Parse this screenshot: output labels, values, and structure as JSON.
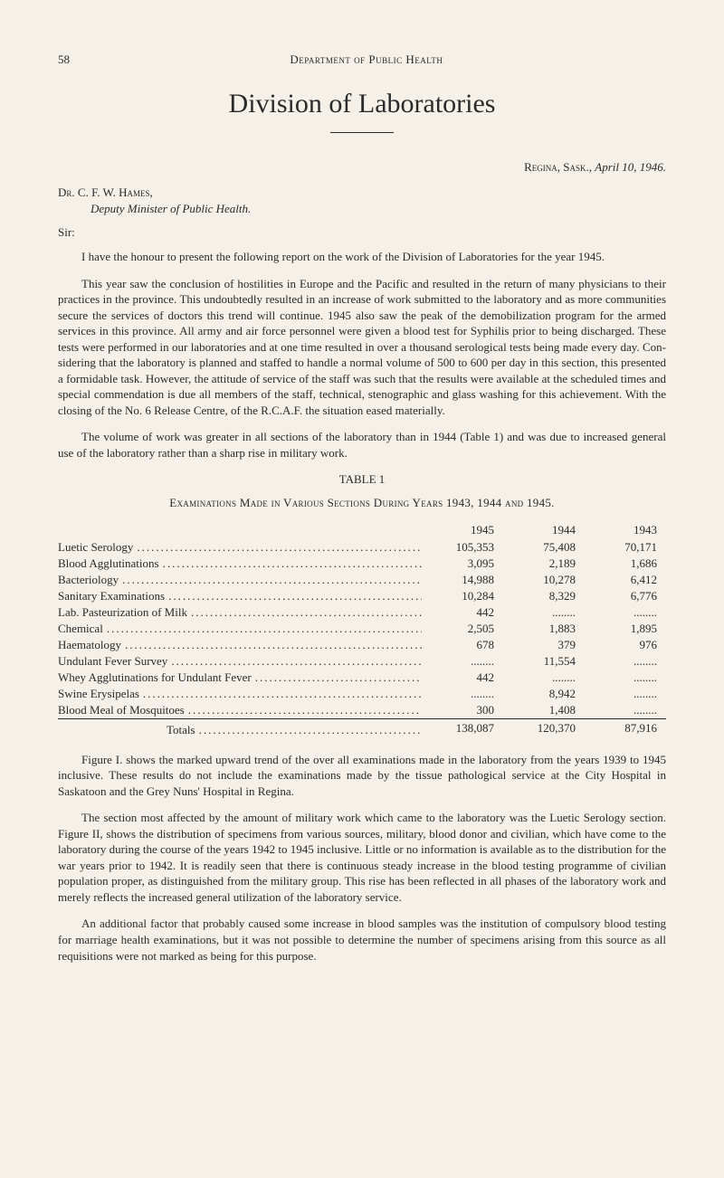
{
  "page": {
    "number": "58",
    "departmentHeader": "Department of Public Health",
    "backgroundColor": "#f5f0e8",
    "textColor": "#2a2a2a"
  },
  "title": "Division of Laboratories",
  "dateLine": {
    "location": "Regina, Sask.,",
    "date": "April 10, 1946."
  },
  "addressee": {
    "prefix": "Dr.",
    "name": "C. F. W. Hames,",
    "title": "Deputy Minister of Public Health."
  },
  "salutation": "Sir:",
  "paragraphs": {
    "p1": "I have the honour to present the following report on the work of the Division of Laboratories for the year 1945.",
    "p2": "This year saw the conclusion of hostilities in Europe and the Pacific and re­sulted in the return of many physicians to their practices in the province. This undoubtedly resulted in an increase of work submitted to the laboratory and as more communities secure the services of doctors this trend will continue. 1945 also saw the peak of the demobilization program for the armed services in this province. All army and air force personnel were given a blood test for Syphilis prior to being discharged. These tests were performed in our laboratories and at one time resulted in over a thousand serological tests being made every day. Con­sidering that the laboratory is planned and staffed to handle a normal volume of 500 to 600 per day in this section, this presented a formidable task. However, the attitude of service of the staff was such that the results were available at the scheduled times and special commendation is due all members of the staff, technical, stenographic and glass washing for this achievement. With the closing of the No. 6 Release Centre, of the R.C.A.F. the situation eased materially.",
    "p3": "The volume of work was greater in all sections of the laboratory than in 1944 (Table 1) and was due to increased general use of the laboratory rather than a sharp rise in military work.",
    "p4": "Figure I. shows the marked upward trend of the over all examinations made in the laboratory from the years 1939 to 1945 inclusive. These results do not in­clude the examinations made by the tissue pathological service at the City Hospital in Saskatoon and the Grey Nuns' Hospital in Regina.",
    "p5": "The section most affected by the amount of military work which came to the laboratory was the Luetic Serology section. Figure II, shows the distribution of specimens from various sources, military, blood donor and civilian, which have come to the laboratory during the course of the years 1942 to 1945 inclusive. Little or no information is available as to the distribution for the war years prior to 1942. It is readily seen that there is continuous steady increase in the blood testing pro­gramme of civilian population proper, as distinguished from the military group. This rise has been reflected in all phases of the laboratory work and merely reflects the increased general utilization of the laboratory service.",
    "p6": "An additional factor that probably caused some increase in blood samples was the institution of compulsory blood testing for marriage health examinations, but it was not possible to determine the number of specimens arising from this source as all requisitions were not marked as being for this purpose."
  },
  "table": {
    "caption": "TABLE 1",
    "subcaption": "Examinations Made in Various Sections During Years 1943, 1944 and 1945.",
    "years": [
      "1945",
      "1944",
      "1943"
    ],
    "rows": [
      {
        "label": "Luetic Serology",
        "v1945": "105,353",
        "v1944": "75,408",
        "v1943": "70,171"
      },
      {
        "label": "Blood Agglutinations",
        "v1945": "3,095",
        "v1944": "2,189",
        "v1943": "1,686"
      },
      {
        "label": "Bacteriology",
        "v1945": "14,988",
        "v1944": "10,278",
        "v1943": "6,412"
      },
      {
        "label": "Sanitary Examinations",
        "v1945": "10,284",
        "v1944": "8,329",
        "v1943": "6,776"
      },
      {
        "label": "Lab. Pasteurization of Milk",
        "v1945": "442",
        "v1944": "",
        "v1943": ""
      },
      {
        "label": "Chemical",
        "v1945": "2,505",
        "v1944": "1,883",
        "v1943": "1,895"
      },
      {
        "label": "Haematology",
        "v1945": "678",
        "v1944": "379",
        "v1943": "976"
      },
      {
        "label": "Undulant Fever Survey",
        "v1945": "",
        "v1944": "11,554",
        "v1943": ""
      },
      {
        "label": "Whey Agglutinations for Undulant Fever",
        "v1945": "442",
        "v1944": "",
        "v1943": ""
      },
      {
        "label": "Swine Erysipelas",
        "v1945": "",
        "v1944": "8,942",
        "v1943": ""
      },
      {
        "label": "Blood Meal of Mosquitoes",
        "v1945": "300",
        "v1944": "1,408",
        "v1943": ""
      }
    ],
    "totals": {
      "label": "Totals",
      "v1945": "138,087",
      "v1944": "120,370",
      "v1943": "87,916"
    },
    "blankPlaceholder": "........"
  }
}
